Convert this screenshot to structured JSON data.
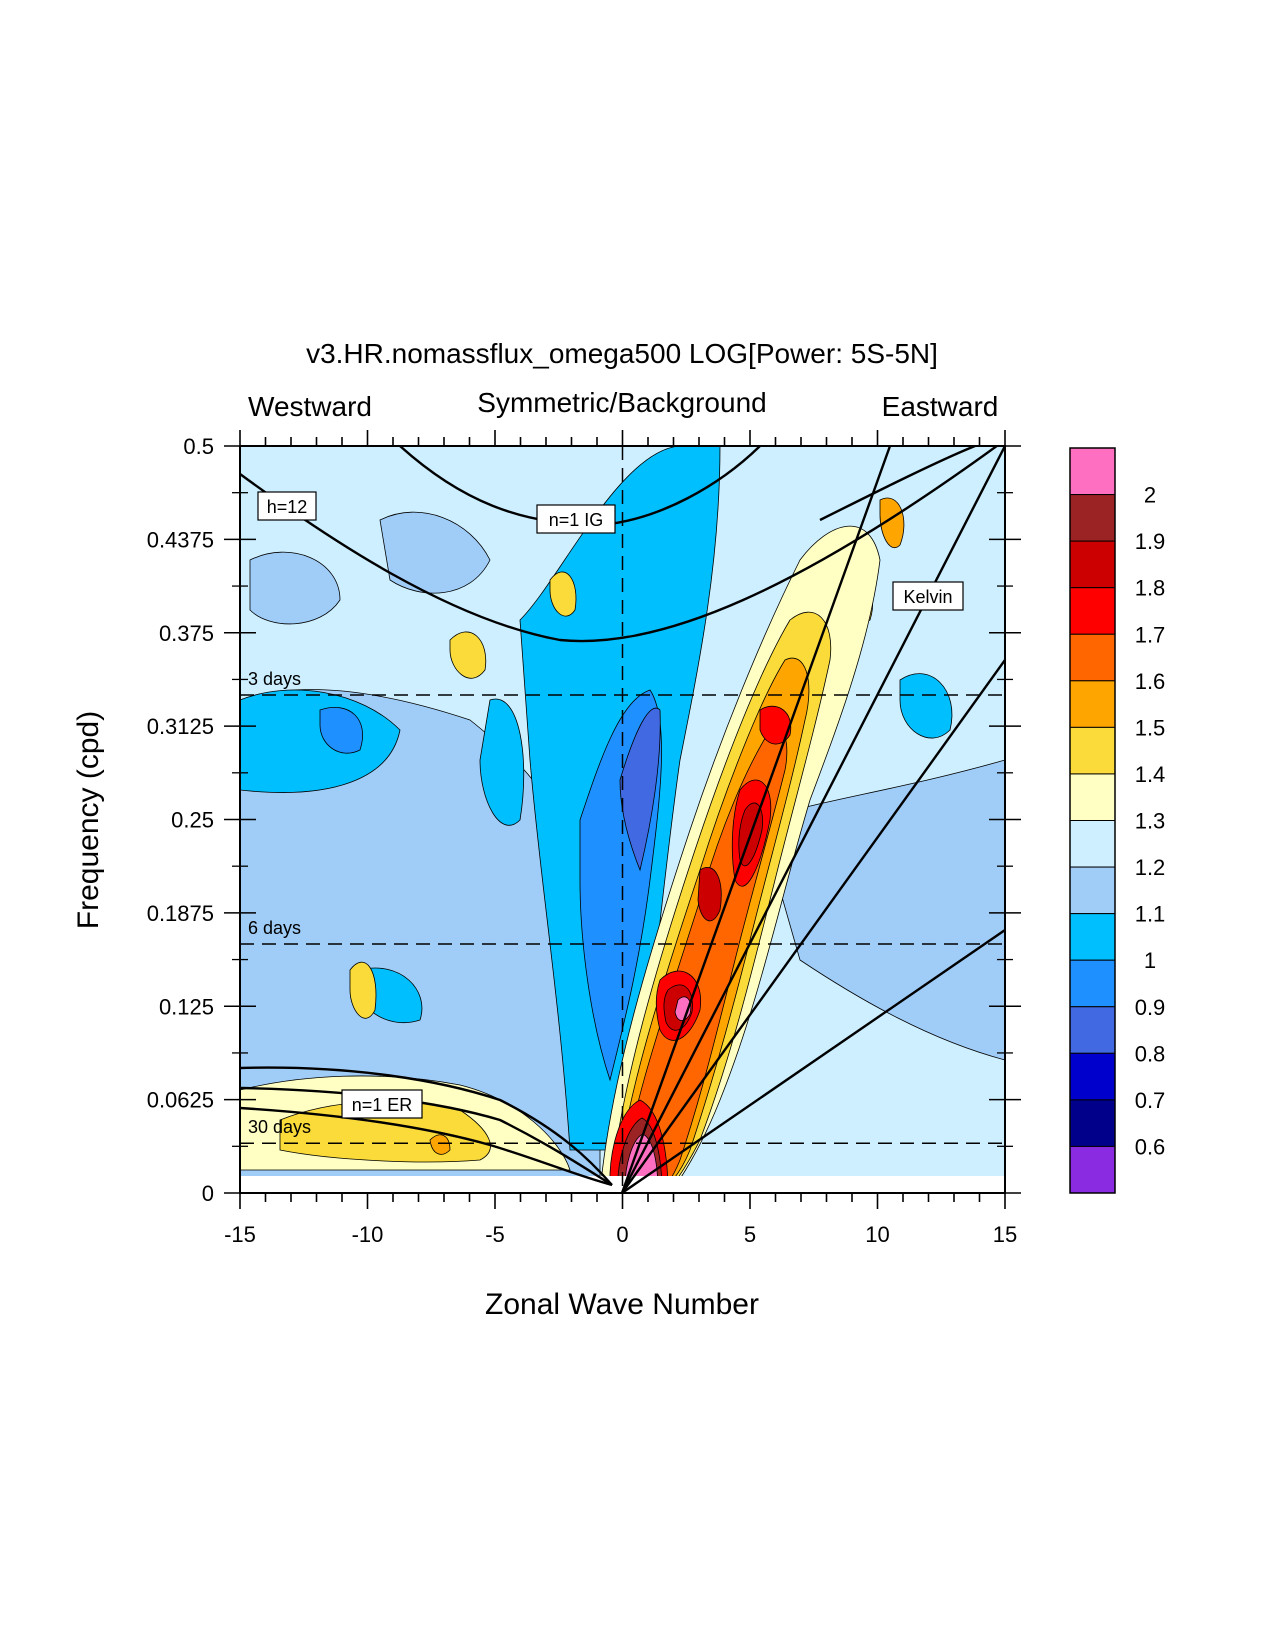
{
  "chart_data": {
    "type": "heatmap",
    "title": "v3.HR.nomassflux_omega500 LOG[Power: 5S-5N]",
    "top_labels": {
      "left": "Westward",
      "center": "Symmetric/Background",
      "right": "Eastward"
    },
    "xlabel": "Zonal Wave Number",
    "ylabel": "Frequency (cpd)",
    "xlim": [
      -15,
      15
    ],
    "ylim": [
      0,
      0.5
    ],
    "x_ticks": [
      "-15",
      "-10",
      "-5",
      "0",
      "5",
      "10",
      "15"
    ],
    "y_ticks": [
      "0",
      "0.0625",
      "0.125",
      "0.1875",
      "0.25",
      "0.3125",
      "0.375",
      "0.4375",
      "0.5"
    ],
    "y_tick_values": [
      0,
      0.0625,
      0.125,
      0.1875,
      0.25,
      0.3125,
      0.375,
      0.4375,
      0.5
    ],
    "period_lines": [
      {
        "label": "3 days",
        "freq": 0.3333
      },
      {
        "label": "6 days",
        "freq": 0.1667
      },
      {
        "label": "30 days",
        "freq": 0.0333
      }
    ],
    "curve_labels": {
      "h12": "h=12",
      "ig": "n=1 IG",
      "er": "n=1 ER",
      "kelvin": "Kelvin"
    },
    "colorbar": {
      "labels": [
        "2",
        "1.9",
        "1.8",
        "1.7",
        "1.6",
        "1.5",
        "1.4",
        "1.3",
        "1.2",
        "1.1",
        "1",
        "0.9",
        "0.8",
        "0.7",
        "0.6"
      ],
      "colors": [
        "#ff6fc1",
        "#9c2323",
        "#cc0000",
        "#ff0000",
        "#ff6600",
        "#ffa500",
        "#fadb39",
        "#ffffc3",
        "#cdefff",
        "#a0cdf8",
        "#00bfff",
        "#1e90ff",
        "#4169e1",
        "#0000cd",
        "#00008b",
        "#8a2be2"
      ]
    },
    "grid": false,
    "legend": "colorbar-right"
  }
}
